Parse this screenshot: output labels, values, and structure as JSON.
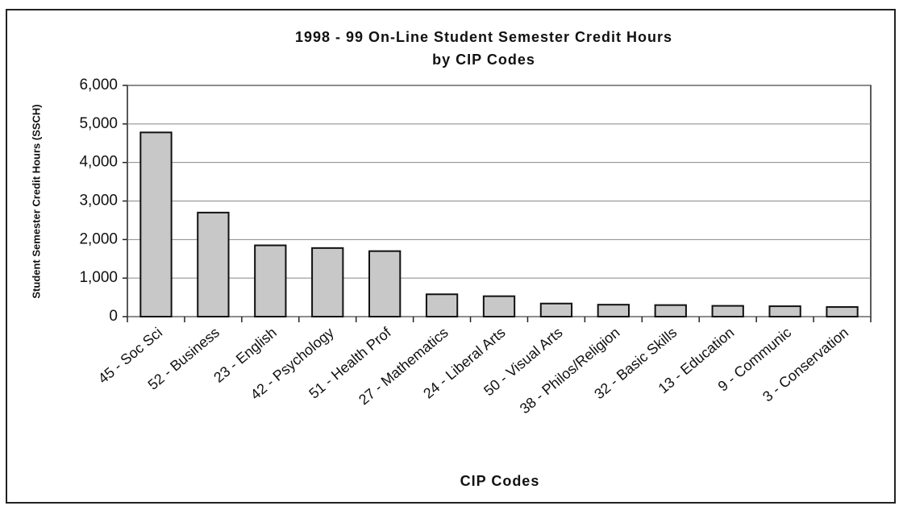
{
  "chart_data": {
    "type": "bar",
    "title": "1998 - 99 On-Line Student Semester Credit Hours",
    "subtitle": "by CIP Codes",
    "x_label": "CIP Codes",
    "y_label": "Student Semester Credit Hours (SSCH)",
    "categories": [
      "45 - Soc Sci",
      "52 - Business",
      "23 - English",
      "42 - Psychology",
      "51 - Health Prof",
      "27 - Mathematics",
      "24 - Liberal Arts",
      "50 - Visual Arts",
      "38 - Philos/Religion",
      "32 - Basic Skills",
      "13 - Education",
      "9 - Communic",
      "3 - Conservation"
    ],
    "values": [
      4780,
      2700,
      1850,
      1780,
      1700,
      580,
      530,
      340,
      310,
      300,
      280,
      270,
      250
    ],
    "color": "#c8c8c8",
    "ylim": [
      0,
      6000
    ],
    "yticks": [
      0,
      {
        "value": 1000,
        "label": "1,000"
      },
      {
        "value": 2000,
        "label": "2,000"
      },
      {
        "value": 3000,
        "label": "3,000"
      },
      {
        "value": 4000,
        "label": "4,000"
      },
      {
        "value": 5000,
        "label": "5,000"
      },
      {
        "value": 6000,
        "label": "6,000"
      }
    ],
    "grid": true
  }
}
